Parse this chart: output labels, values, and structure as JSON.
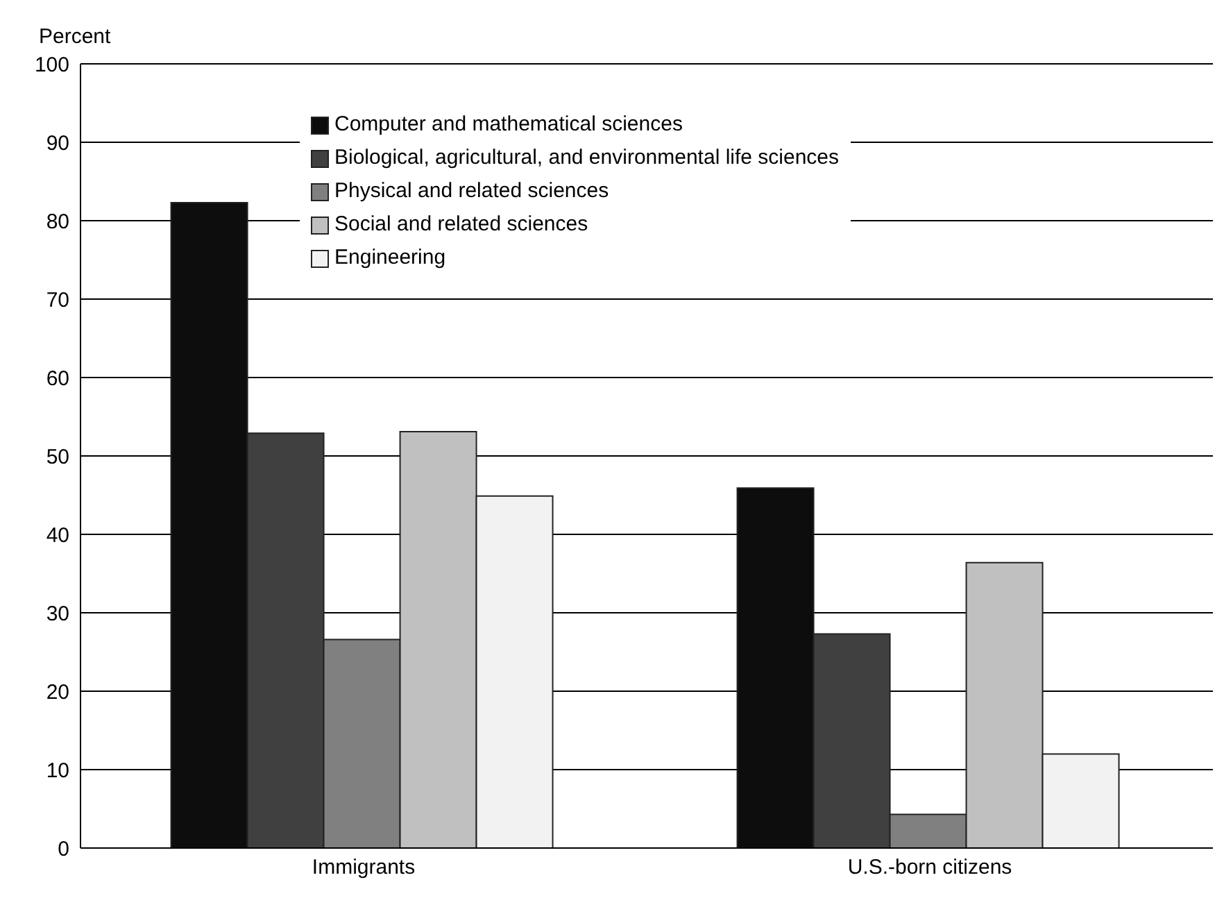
{
  "chart_data": {
    "type": "bar",
    "ylabel": "Percent",
    "categories": [
      "Immigrants",
      "U.S.-born citizens"
    ],
    "series": [
      {
        "name": "Computer and mathematical sciences",
        "color": "#0d0d0d",
        "values": [
          82.3,
          45.9
        ]
      },
      {
        "name": "Biological, agricultural, and environmental life sciences",
        "color": "#404040",
        "values": [
          52.9,
          27.3
        ]
      },
      {
        "name": "Physical and related sciences",
        "color": "#808080",
        "values": [
          26.6,
          4.3
        ]
      },
      {
        "name": "Social and related sciences",
        "color": "#c0c0c0",
        "values": [
          53.1,
          36.4
        ]
      },
      {
        "name": "Engineering",
        "color": "#f2f2f2",
        "values": [
          44.9,
          12.0
        ]
      }
    ],
    "ylim": [
      0,
      100
    ],
    "yticks": [
      0,
      10,
      20,
      30,
      40,
      50,
      60,
      70,
      80,
      90,
      100
    ],
    "grid": "y",
    "legend": "top"
  }
}
